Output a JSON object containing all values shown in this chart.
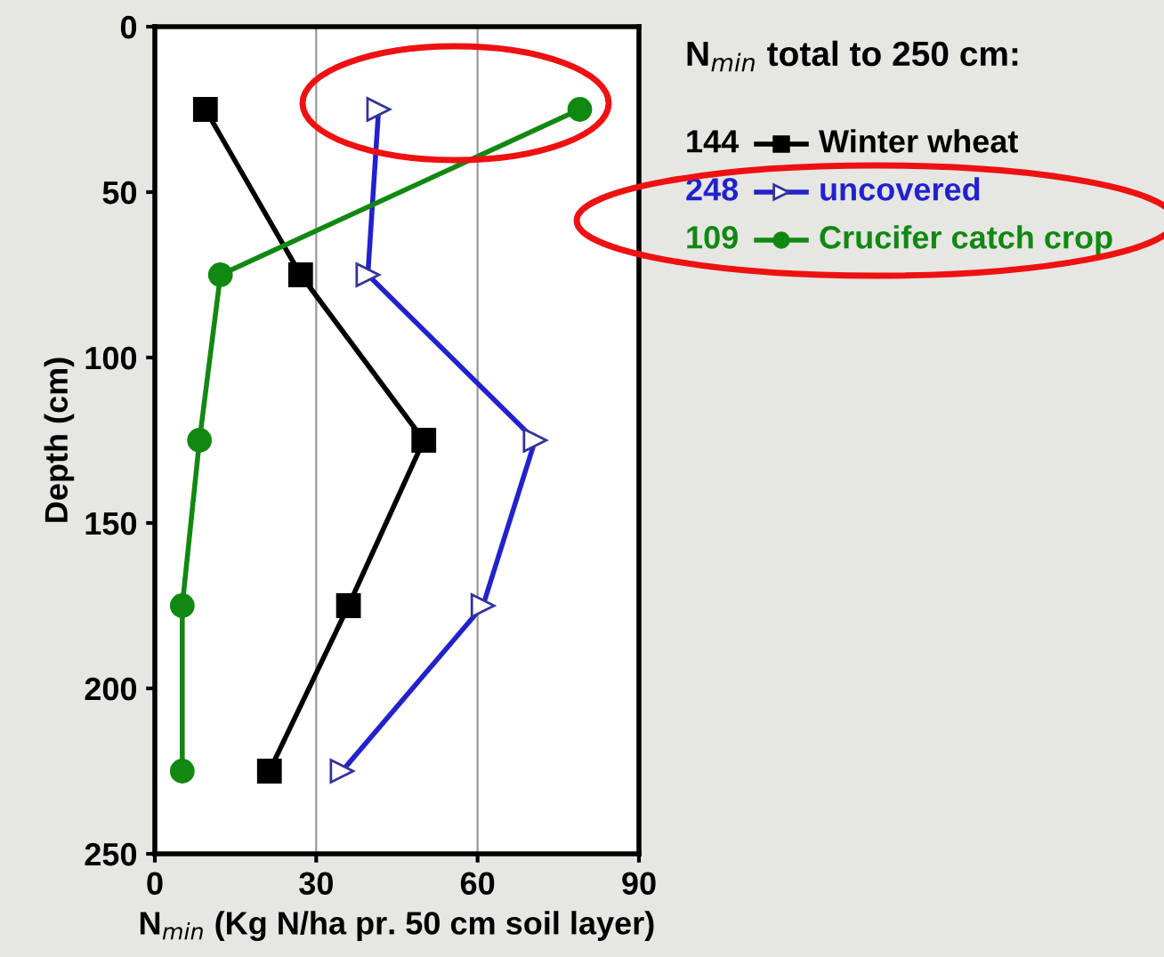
{
  "chart_data": {
    "type": "line",
    "xlabel": "N$_{min}$ (Kg N/ha pr. 50 cm soil layer)",
    "ylabel": "Depth (cm)",
    "legend_title": "N$_{min}$ total to 250 cm:",
    "annotations": [
      "144",
      "248",
      "109"
    ],
    "xlim": [
      0,
      90
    ],
    "xticks": [
      0,
      30,
      60,
      90
    ],
    "ylim": [
      250,
      0
    ],
    "yticks": [
      0,
      50,
      100,
      150,
      200,
      250
    ],
    "grid": "x",
    "legend": "right",
    "line_style": "solid",
    "series": [
      {
        "name": "Winter wheat",
        "color": "#000000",
        "marker": "square",
        "x": [
          9.4,
          27.1,
          50,
          36,
          21.3
        ],
        "values": [
          25,
          75,
          125,
          175,
          225
        ]
      },
      {
        "name": "uncovered",
        "color": "#2222cc",
        "marker": "triangle",
        "x": [
          41.6,
          39.6,
          70.7,
          61,
          34.8
        ],
        "values": [
          25,
          75,
          125,
          175,
          225
        ]
      },
      {
        "name": "Crucifer catch crop",
        "color": "#118811",
        "marker": "circle",
        "x": [
          79,
          12.2,
          8.3,
          5.1,
          5.1
        ],
        "values": [
          25,
          75,
          125,
          175,
          225
        ]
      }
    ]
  }
}
